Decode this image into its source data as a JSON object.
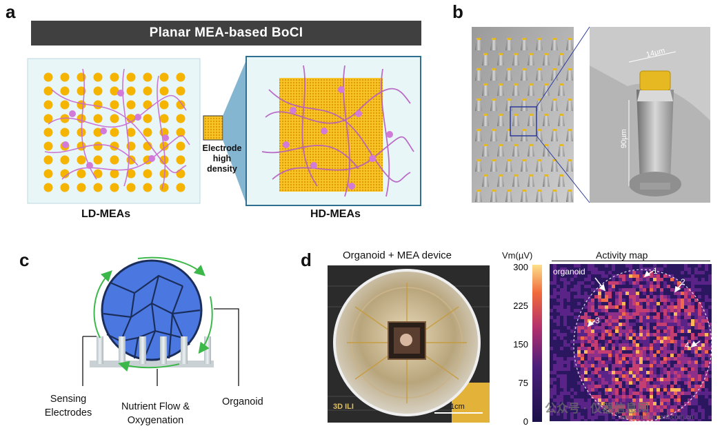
{
  "panel_a": {
    "label": "a",
    "banner": "Planar MEA-based BoCI",
    "ld_caption": "LD-MEAs",
    "hd_caption": "HD-MEAs",
    "middle_lines": [
      "Electrode",
      "high",
      "density"
    ],
    "colors": {
      "electrode": "#f5b400",
      "neuron": "#d27ad8",
      "panel_bg": "#e8f6f8",
      "border": "#2f6f8f"
    }
  },
  "panel_b": {
    "label": "b",
    "width_label": "14µm",
    "height_label": "90µm"
  },
  "panel_c": {
    "label": "c",
    "label_sensing": [
      "Sensing",
      "Electrodes"
    ],
    "label_flow": [
      "Nutrient Flow &",
      "Oxygenation"
    ],
    "label_organoid": "Organoid",
    "colors": {
      "organoid": "#4a78e0",
      "outline": "#1b2d5a",
      "arrow": "#3cb84a"
    }
  },
  "panel_d": {
    "label": "d",
    "photo_title": "Organoid + MEA device",
    "photo_mark": "3D ILI",
    "scalebar_label": "1cm",
    "colorbar_title": "Vm(µV)",
    "colorbar_ticks": [
      "300",
      "225",
      "150",
      "75",
      "0"
    ],
    "map_title": "Activity map",
    "map_organoid": "organoid",
    "points": [
      "1",
      "2",
      "3",
      "4"
    ]
  },
  "watermark": {
    "text": "公众号 · 仪器信息网",
    "url": "www.instrument.com.cn"
  }
}
